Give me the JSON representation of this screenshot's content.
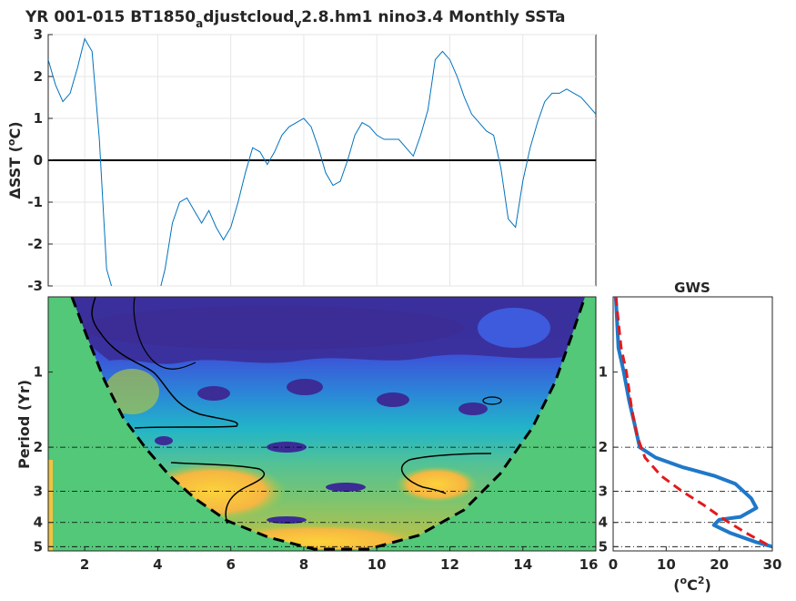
{
  "chart_data": [
    {
      "type": "line",
      "title_main": "YR 001-015 BT1850",
      "title_sub1": "a",
      "title_mid": "djustcloud",
      "title_sub2": "v",
      "title_tail": "2.8.hm1 nino3.4 Monthly SSTa",
      "ylabel": "ΔSST (°C)",
      "ylabel_delta": "Δ",
      "ylabel_text": "SST (",
      "ylabel_deg": "o",
      "ylabel_unit": "C)",
      "xlim": [
        1,
        16
      ],
      "ylim": [
        -3,
        3
      ],
      "yticks": [
        "3",
        "2",
        "1",
        "0",
        "-1",
        "-2",
        "-3"
      ],
      "x": [
        1.0,
        1.2,
        1.4,
        1.6,
        1.8,
        2.0,
        2.2,
        2.4,
        2.6,
        2.8,
        3.0,
        3.2,
        3.4,
        3.6,
        3.8,
        4.0,
        4.2,
        4.4,
        4.6,
        4.8,
        5.0,
        5.2,
        5.4,
        5.6,
        5.8,
        6.0,
        6.2,
        6.4,
        6.6,
        6.8,
        7.0,
        7.2,
        7.4,
        7.6,
        7.8,
        8.0,
        8.2,
        8.4,
        8.6,
        8.8,
        9.0,
        9.2,
        9.4,
        9.6,
        9.8,
        10.0,
        10.2,
        10.4,
        10.6,
        10.8,
        11.0,
        11.2,
        11.4,
        11.6,
        11.8,
        12.0,
        12.2,
        12.4,
        12.6,
        12.8,
        13.0,
        13.2,
        13.4,
        13.6,
        13.8,
        14.0,
        14.2,
        14.4,
        14.6,
        14.8,
        15.0,
        15.2,
        15.4,
        15.6,
        15.8,
        16.0
      ],
      "y": [
        2.4,
        1.8,
        1.4,
        1.6,
        2.2,
        2.9,
        2.6,
        0.5,
        -2.6,
        -3.2,
        -3.3,
        -3.4,
        -3.5,
        -3.6,
        -3.5,
        -3.3,
        -2.6,
        -1.5,
        -1.0,
        -0.9,
        -1.2,
        -1.5,
        -1.2,
        -1.6,
        -1.9,
        -1.6,
        -1.0,
        -0.3,
        0.3,
        0.2,
        -0.1,
        0.2,
        0.6,
        0.8,
        0.9,
        1.0,
        0.8,
        0.3,
        -0.3,
        -0.6,
        -0.5,
        0.0,
        0.6,
        0.9,
        0.8,
        0.6,
        0.5,
        0.5,
        0.5,
        0.3,
        0.1,
        0.6,
        1.2,
        2.4,
        2.6,
        2.4,
        2.0,
        1.5,
        1.1,
        0.9,
        0.7,
        0.6,
        -0.2,
        -1.4,
        -1.6,
        -0.5,
        0.3,
        0.9,
        1.4,
        1.6,
        1.6,
        1.7,
        1.6,
        1.5,
        1.3,
        1.1
      ],
      "zero_line": true
    },
    {
      "type": "heatmap",
      "ylabel": "Period (Yr)",
      "xlim": [
        1,
        16
      ],
      "xticks": [
        "2",
        "4",
        "6",
        "8",
        "10",
        "12",
        "14",
        "16"
      ],
      "yticks": [
        "1",
        "2",
        "3",
        "4",
        "5"
      ],
      "period_scale": "log",
      "reference_periods": [
        2,
        3,
        4,
        5
      ],
      "cone_of_influence": true,
      "colormap": "parula"
    },
    {
      "type": "line",
      "title": "GWS",
      "xlabel_open": "(",
      "xlabel_deg": "o",
      "xlabel_mid": "C",
      "xlabel_sup": "2",
      "xlabel_close": ")",
      "xticks": [
        "0",
        "10",
        "20",
        "30"
      ],
      "yticks": [
        "1",
        "2",
        "3",
        "4",
        "5"
      ],
      "xlim": [
        0,
        30
      ],
      "series": [
        {
          "values": [
            [
              0.5,
              0.5
            ],
            [
              1,
              0.8
            ],
            [
              2,
              1.0
            ],
            [
              3,
              1.3
            ],
            [
              4,
              1.6
            ],
            [
              5,
              2.0
            ],
            [
              8,
              2.2
            ],
            [
              13,
              2.4
            ],
            [
              19,
              2.6
            ],
            [
              23,
              2.8
            ],
            [
              26,
              3.2
            ],
            [
              27,
              3.5
            ],
            [
              24,
              3.8
            ],
            [
              20,
              3.9
            ],
            [
              19,
              4.1
            ],
            [
              22,
              4.4
            ],
            [
              27,
              4.8
            ],
            [
              30,
              5.0
            ]
          ],
          "color": "#1f78c8"
        },
        {
          "values": [
            [
              0.5,
              0.5
            ],
            [
              1.5,
              0.8
            ],
            [
              2.5,
              1.0
            ],
            [
              3.5,
              1.4
            ],
            [
              4.5,
              1.8
            ],
            [
              6,
              2.2
            ],
            [
              9,
              2.6
            ],
            [
              13,
              3.0
            ],
            [
              17,
              3.4
            ],
            [
              21,
              3.9
            ],
            [
              25,
              4.4
            ],
            [
              29,
              4.9
            ]
          ],
          "color": "#e31a1c"
        }
      ]
    }
  ]
}
